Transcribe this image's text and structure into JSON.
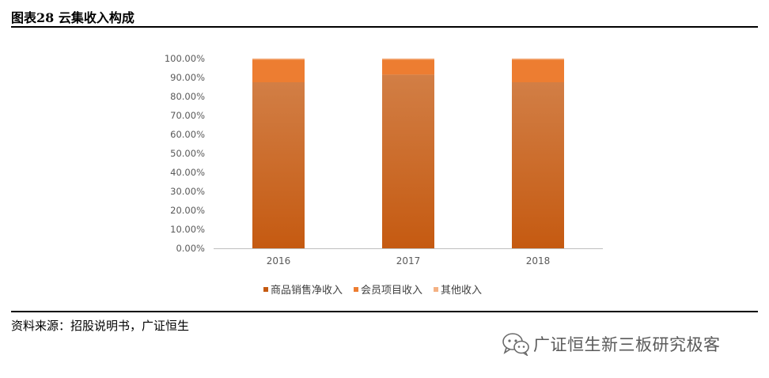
{
  "figure": {
    "title": "图表28 云集收入构成",
    "source": "资料来源：招股说明书，广证恒生",
    "watermark": "广证恒生新三板研究极客",
    "watermark_icon": "wechat-icon"
  },
  "colors": {
    "series": [
      "#c55a11",
      "#ed7d31",
      "#f4b183"
    ],
    "axis": "#bfbfbf",
    "tick_text": "#595959"
  },
  "chart_data": {
    "type": "bar",
    "stacked": true,
    "categories": [
      "2016",
      "2017",
      "2018"
    ],
    "series": [
      {
        "name": "商品销售净收入",
        "values": [
          87.5,
          91.5,
          87.5
        ]
      },
      {
        "name": "会员项目收入",
        "values": [
          12.0,
          8.0,
          12.0
        ]
      },
      {
        "name": "其他收入",
        "values": [
          0.5,
          0.5,
          0.5
        ]
      }
    ],
    "ylim": [
      0,
      100
    ],
    "yticks": [
      0,
      10,
      20,
      30,
      40,
      50,
      60,
      70,
      80,
      90,
      100
    ],
    "ytick_labels": [
      "0.00%",
      "10.00%",
      "20.00%",
      "30.00%",
      "40.00%",
      "50.00%",
      "60.00%",
      "70.00%",
      "80.00%",
      "90.00%",
      "100.00%"
    ],
    "xlabel": "",
    "ylabel": "",
    "grid": false,
    "legend_position": "bottom"
  }
}
